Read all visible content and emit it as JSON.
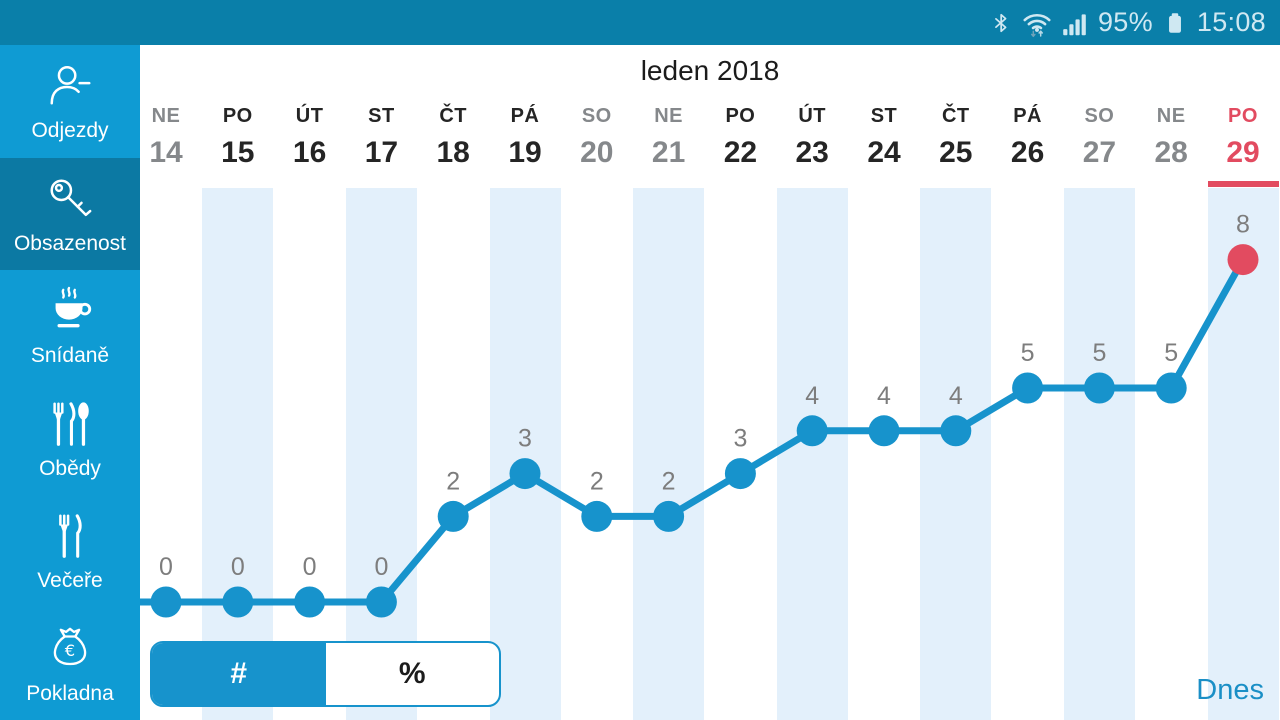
{
  "status_bar": {
    "battery_percent": "95%",
    "time": "15:08",
    "icons": [
      "bluetooth-icon",
      "wifi-icon",
      "signal-strength-icon",
      "battery-icon"
    ]
  },
  "sidebar": {
    "items": [
      {
        "id": "odjezdy",
        "label": "Odjezdy",
        "icon": "person-departure-icon",
        "selected": false
      },
      {
        "id": "obsazenost",
        "label": "Obsazenost",
        "icon": "key-icon",
        "selected": true
      },
      {
        "id": "snidane",
        "label": "Snídaně",
        "icon": "coffee-cup-icon",
        "selected": false
      },
      {
        "id": "obedy",
        "label": "Obědy",
        "icon": "meal-cutlery-icon",
        "selected": false
      },
      {
        "id": "vecere",
        "label": "Večeře",
        "icon": "dinner-cutlery-icon",
        "selected": false
      },
      {
        "id": "pokladna",
        "label": "Pokladna",
        "icon": "money-bag-icon",
        "selected": false
      }
    ]
  },
  "main": {
    "title": "leden 2018",
    "today_label": "Dnes",
    "unit_toggle": {
      "options": [
        "#",
        "%"
      ],
      "selected": "#"
    }
  },
  "chart_data": {
    "type": "line",
    "title": "leden 2018",
    "categories": [
      {
        "weekday": "NE",
        "date": "14",
        "weekend": true,
        "today": false
      },
      {
        "weekday": "PO",
        "date": "15",
        "weekend": false,
        "today": false
      },
      {
        "weekday": "ÚT",
        "date": "16",
        "weekend": false,
        "today": false
      },
      {
        "weekday": "ST",
        "date": "17",
        "weekend": false,
        "today": false
      },
      {
        "weekday": "ČT",
        "date": "18",
        "weekend": false,
        "today": false
      },
      {
        "weekday": "PÁ",
        "date": "19",
        "weekend": false,
        "today": false
      },
      {
        "weekday": "SO",
        "date": "20",
        "weekend": true,
        "today": false
      },
      {
        "weekday": "NE",
        "date": "21",
        "weekend": true,
        "today": false
      },
      {
        "weekday": "PO",
        "date": "22",
        "weekend": false,
        "today": false
      },
      {
        "weekday": "ÚT",
        "date": "23",
        "weekend": false,
        "today": false
      },
      {
        "weekday": "ST",
        "date": "24",
        "weekend": false,
        "today": false
      },
      {
        "weekday": "ČT",
        "date": "25",
        "weekend": false,
        "today": false
      },
      {
        "weekday": "PÁ",
        "date": "26",
        "weekend": false,
        "today": false
      },
      {
        "weekday": "SO",
        "date": "27",
        "weekend": true,
        "today": false
      },
      {
        "weekday": "NE",
        "date": "28",
        "weekend": true,
        "today": false
      },
      {
        "weekday": "PO",
        "date": "29",
        "weekend": false,
        "today": true
      }
    ],
    "values": [
      0,
      0,
      0,
      0,
      2,
      3,
      2,
      2,
      3,
      4,
      4,
      4,
      5,
      5,
      5,
      8
    ],
    "point_labels_visible": true,
    "xlabel": "",
    "ylabel": "",
    "ylim": [
      0,
      10
    ],
    "legend": false,
    "grid": "alternating-column-stripes"
  },
  "colors": {
    "statusbar_bg": "#0a7fa9",
    "sidebar_bg": "#0f9bd3",
    "sidebar_selected_bg": "#0c79a3",
    "accent": "#1793cc",
    "today_red": "#e24b60",
    "stripe": "#e3f0fb",
    "label_gray": "#7d7d7d",
    "weekend_gray": "#85888b",
    "text_dark": "#252525",
    "dnes_blue": "#1a8fc6",
    "status_fg": "#cfe8f2"
  }
}
